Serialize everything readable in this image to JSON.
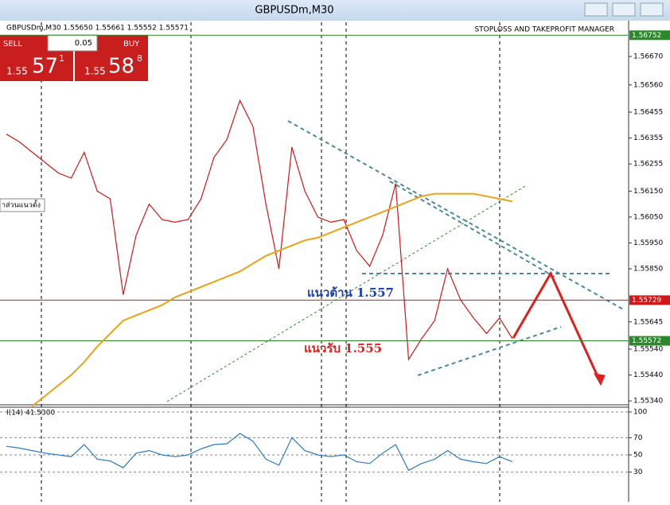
{
  "window": {
    "title": "GBPUSDm,M30"
  },
  "trade_panel": {
    "sell": "SELL",
    "lot": "0.05",
    "buy": "BUY",
    "sell_big": "1.55",
    "sell_pips": "57",
    "sell_frac": "1",
    "buy_big": "1.55",
    "buy_pips": "58",
    "buy_frac": "8"
  },
  "chart_data": [
    {
      "type": "line",
      "header": "GBPUSDm,M30 1.55650 1.55661 1.55552 1.55571",
      "expert": "STOPLOSS AND TAKEPROFIT MANAGER",
      "side_label": "าส่วนแนวตั้ง",
      "series": [
        {
          "color": "#d01818",
          "values": [
            1.5637,
            1.5634,
            1.563,
            1.5626,
            1.5622,
            1.562,
            1.563,
            1.5615,
            1.5612,
            1.5575,
            1.5598,
            1.561,
            1.5604,
            1.5603,
            1.5604,
            1.5612,
            1.5628,
            1.5635,
            1.565,
            1.564,
            1.561,
            1.5585,
            1.5632,
            1.5615,
            1.5605,
            1.5603,
            1.5604,
            1.5592,
            1.5586,
            1.5598,
            1.5618,
            1.555,
            1.5558,
            1.5565,
            1.5585,
            1.5573,
            1.5566,
            1.556,
            1.5566,
            1.5558
          ]
        },
        {
          "color": "#e8a317",
          "values": [
            null,
            null,
            1.5532,
            1.5536,
            1.554,
            1.5544,
            1.5549,
            1.5555,
            1.556,
            1.5565,
            1.5567,
            1.5569,
            1.5571,
            1.5574,
            1.5576,
            1.5578,
            1.558,
            1.5582,
            1.5584,
            1.5587,
            1.559,
            1.5592,
            1.5594,
            1.5596,
            1.5597,
            1.5599,
            1.5601,
            1.5603,
            1.5605,
            1.5607,
            1.5609,
            1.5611,
            1.5613,
            1.5614,
            1.5614,
            1.5614,
            1.5614,
            1.5613,
            1.5612,
            1.5611
          ]
        }
      ],
      "ylim": [
        1.55328,
        1.56802
      ],
      "yticks": [
        {
          "value": 1.5667,
          "label": "1.56670"
        },
        {
          "value": 1.5656,
          "label": "1.56560"
        },
        {
          "value": 1.56455,
          "label": "1.56455"
        },
        {
          "value": 1.56355,
          "label": "1.56355"
        },
        {
          "value": 1.56255,
          "label": "1.56255"
        },
        {
          "value": 1.5615,
          "label": "1.56150"
        },
        {
          "value": 1.5605,
          "label": "1.56050"
        },
        {
          "value": 1.5595,
          "label": "1.55950"
        },
        {
          "value": 1.5585,
          "label": "1.55850"
        },
        {
          "value": 1.55645,
          "label": "1.55645"
        },
        {
          "value": 1.5554,
          "label": "1.55540"
        },
        {
          "value": 1.5544,
          "label": "1.55440"
        },
        {
          "value": 1.5534,
          "label": "1.55340"
        }
      ],
      "price_lines": [
        {
          "value": 1.56752,
          "label": "1.56752",
          "color": "#2a8a2a"
        },
        {
          "value": 1.55729,
          "label": "1.55729",
          "color": "#d01818"
        },
        {
          "value": 1.55572,
          "label": "1.55572",
          "color": "#2a8a2a"
        }
      ],
      "annotations": [
        {
          "text": "แนวต้าน 1.557",
          "color": "#1f3fb0"
        },
        {
          "text": "แนวรับ 1.555",
          "color": "#e0201f"
        }
      ]
    },
    {
      "type": "line",
      "title": "I(14) 41.5300",
      "series": [
        {
          "color": "#2b7bc0",
          "values": [
            60,
            58,
            55,
            52,
            50,
            48,
            62,
            45,
            43,
            35,
            52,
            55,
            50,
            48,
            50,
            57,
            62,
            63,
            75,
            66,
            45,
            38,
            70,
            55,
            50,
            48,
            50,
            42,
            40,
            52,
            62,
            32,
            40,
            45,
            55,
            45,
            42,
            40,
            48,
            42
          ]
        }
      ],
      "ylim": [
        0,
        100
      ],
      "yticks": [
        100,
        70,
        50,
        30
      ]
    }
  ]
}
